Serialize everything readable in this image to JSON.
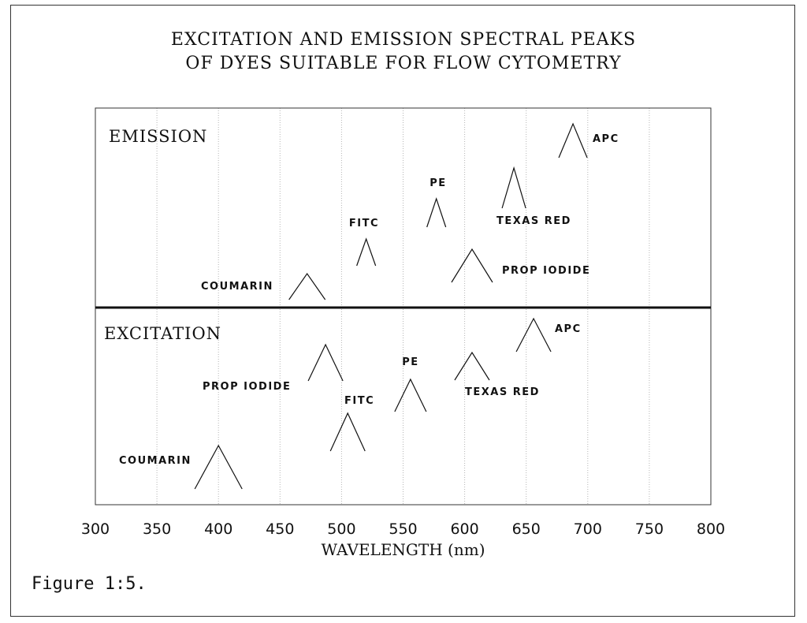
{
  "chart_data": {
    "type": "peak-diagram",
    "title": "EXCITATION AND EMISSION SPECTRAL PEAKS",
    "subtitle": "OF DYES SUITABLE FOR FLOW CYTOMETRY",
    "xlabel": "WAVELENGTH (nm)",
    "xlim": [
      300,
      800
    ],
    "xticks": [
      300,
      350,
      400,
      450,
      500,
      550,
      600,
      650,
      700,
      750,
      800
    ],
    "grid": "vertical",
    "panels": [
      {
        "name": "EMISSION",
        "peaks": [
          {
            "label": "APC",
            "x": 688
          },
          {
            "label": "TEXAS RED",
            "x": 640
          },
          {
            "label": "PE",
            "x": 577
          },
          {
            "label": "FITC",
            "x": 520
          },
          {
            "label": "PROP IODIDE",
            "x": 606
          },
          {
            "label": "COUMARIN",
            "x": 472
          }
        ]
      },
      {
        "name": "EXCITATION",
        "peaks": [
          {
            "label": "APC",
            "x": 656
          },
          {
            "label": "PROP IODIDE",
            "x": 487
          },
          {
            "label": "PE",
            "x": 556
          },
          {
            "label": "TEXAS RED",
            "x": 606
          },
          {
            "label": "FITC",
            "x": 505
          },
          {
            "label": "COUMARIN",
            "x": 400
          }
        ]
      }
    ]
  },
  "caption": "Figure 1:5."
}
